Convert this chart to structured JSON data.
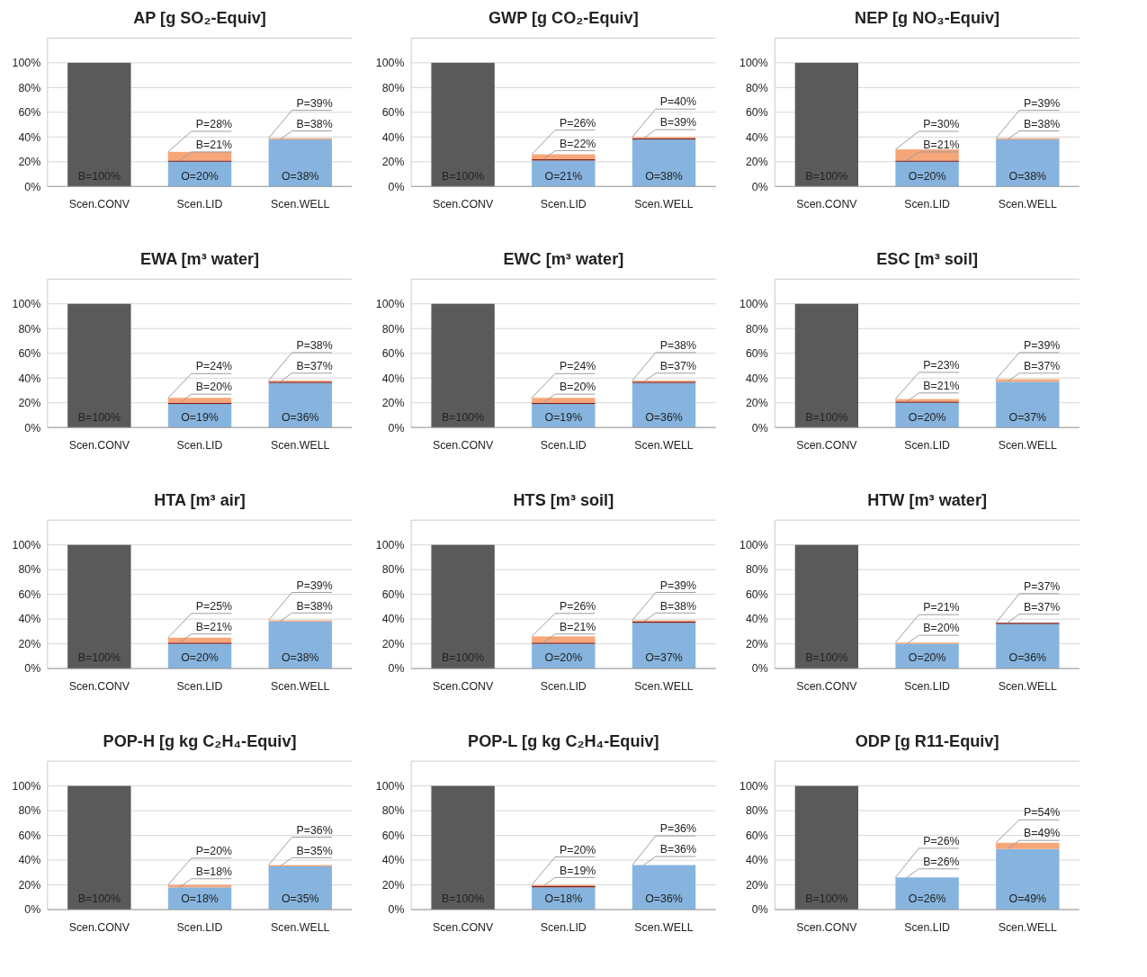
{
  "chart_data": [
    {
      "type": "bar",
      "stacked": true,
      "grid": "y",
      "title": "AP [g SO₂-Equiv]",
      "categories": [
        "Scen.CONV",
        "Scen.LID",
        "Scen.WELL"
      ],
      "ylim": [
        0,
        120
      ],
      "yticks": [
        {
          "value": 0,
          "label": "0%"
        },
        {
          "value": 20,
          "label": "20%"
        },
        {
          "value": 40,
          "label": "40%"
        },
        {
          "value": 60,
          "label": "60%"
        },
        {
          "value": 80,
          "label": "80%"
        },
        {
          "value": 100,
          "label": "100%"
        }
      ],
      "series": [
        {
          "colors": [
            "#5a5a5a",
            "#86b4de",
            "#86b4de"
          ],
          "values": [
            0,
            20,
            38
          ],
          "value_labels": [
            null,
            "O=20%",
            "O=38%"
          ]
        },
        {
          "colors": [
            "#5a5a5a",
            "#7b1c1c",
            "#7b1c1c"
          ],
          "values": [
            100,
            1,
            0
          ],
          "value_labels": [
            "B=100%",
            null,
            null
          ]
        },
        {
          "colors": [
            "#5a5a5a",
            "#f7a67a",
            "#f7a67a"
          ],
          "values": [
            0,
            7,
            1
          ]
        }
      ],
      "annotations": [
        {
          "text": "B=21%",
          "x": "Scen.LID",
          "y": 21
        },
        {
          "text": "P=28%",
          "x": "Scen.LID",
          "y": 28
        },
        {
          "text": "B=38%",
          "x": "Scen.WELL",
          "y": 38
        },
        {
          "text": "P=39%",
          "x": "Scen.WELL",
          "y": 39
        }
      ]
    },
    {
      "type": "bar",
      "stacked": true,
      "grid": "y",
      "title": "GWP [g CO₂-Equiv]",
      "categories": [
        "Scen.CONV",
        "Scen.LID",
        "Scen.WELL"
      ],
      "ylim": [
        0,
        120
      ],
      "yticks": [
        {
          "value": 0,
          "label": "0%"
        },
        {
          "value": 20,
          "label": "20%"
        },
        {
          "value": 40,
          "label": "40%"
        },
        {
          "value": 60,
          "label": "60%"
        },
        {
          "value": 80,
          "label": "80%"
        },
        {
          "value": 100,
          "label": "100%"
        }
      ],
      "series": [
        {
          "colors": [
            "#5a5a5a",
            "#86b4de",
            "#86b4de"
          ],
          "values": [
            0,
            21,
            38
          ],
          "value_labels": [
            null,
            "O=21%",
            "O=38%"
          ]
        },
        {
          "colors": [
            "#5a5a5a",
            "#7b1c1c",
            "#7b1c1c"
          ],
          "values": [
            100,
            1,
            1
          ],
          "value_labels": [
            "B=100%",
            null,
            null
          ]
        },
        {
          "colors": [
            "#5a5a5a",
            "#f7a67a",
            "#f7a67a"
          ],
          "values": [
            0,
            4,
            1
          ]
        }
      ],
      "annotations": [
        {
          "text": "B=22%",
          "x": "Scen.LID",
          "y": 22
        },
        {
          "text": "P=26%",
          "x": "Scen.LID",
          "y": 26
        },
        {
          "text": "B=39%",
          "x": "Scen.WELL",
          "y": 39
        },
        {
          "text": "P=40%",
          "x": "Scen.WELL",
          "y": 40
        }
      ]
    },
    {
      "type": "bar",
      "stacked": true,
      "grid": "y",
      "title": "NEP [g NO₃-Equiv]",
      "categories": [
        "Scen.CONV",
        "Scen.LID",
        "Scen.WELL"
      ],
      "ylim": [
        0,
        120
      ],
      "yticks": [
        {
          "value": 0,
          "label": "0%"
        },
        {
          "value": 20,
          "label": "20%"
        },
        {
          "value": 40,
          "label": "40%"
        },
        {
          "value": 60,
          "label": "60%"
        },
        {
          "value": 80,
          "label": "80%"
        },
        {
          "value": 100,
          "label": "100%"
        }
      ],
      "series": [
        {
          "colors": [
            "#5a5a5a",
            "#86b4de",
            "#86b4de"
          ],
          "values": [
            0,
            20,
            38
          ],
          "value_labels": [
            null,
            "O=20%",
            "O=38%"
          ]
        },
        {
          "colors": [
            "#5a5a5a",
            "#7b1c1c",
            "#7b1c1c"
          ],
          "values": [
            100,
            1,
            0
          ],
          "value_labels": [
            "B=100%",
            null,
            null
          ]
        },
        {
          "colors": [
            "#5a5a5a",
            "#f7a67a",
            "#f7a67a"
          ],
          "values": [
            0,
            9,
            1
          ]
        }
      ],
      "annotations": [
        {
          "text": "B=21%",
          "x": "Scen.LID",
          "y": 21
        },
        {
          "text": "P=30%",
          "x": "Scen.LID",
          "y": 30
        },
        {
          "text": "B=38%",
          "x": "Scen.WELL",
          "y": 38
        },
        {
          "text": "P=39%",
          "x": "Scen.WELL",
          "y": 39
        }
      ]
    },
    {
      "type": "bar",
      "stacked": true,
      "grid": "y",
      "title": "EWA [m³ water]",
      "categories": [
        "Scen.CONV",
        "Scen.LID",
        "Scen.WELL"
      ],
      "ylim": [
        0,
        120
      ],
      "yticks": [
        {
          "value": 0,
          "label": "0%"
        },
        {
          "value": 20,
          "label": "20%"
        },
        {
          "value": 40,
          "label": "40%"
        },
        {
          "value": 60,
          "label": "60%"
        },
        {
          "value": 80,
          "label": "80%"
        },
        {
          "value": 100,
          "label": "100%"
        }
      ],
      "series": [
        {
          "colors": [
            "#5a5a5a",
            "#86b4de",
            "#86b4de"
          ],
          "values": [
            0,
            19,
            36
          ],
          "value_labels": [
            null,
            "O=19%",
            "O=36%"
          ]
        },
        {
          "colors": [
            "#5a5a5a",
            "#7b1c1c",
            "#7b1c1c"
          ],
          "values": [
            100,
            1,
            1
          ],
          "value_labels": [
            "B=100%",
            null,
            null
          ]
        },
        {
          "colors": [
            "#5a5a5a",
            "#f7a67a",
            "#f7a67a"
          ],
          "values": [
            0,
            4,
            1
          ]
        }
      ],
      "annotations": [
        {
          "text": "B=20%",
          "x": "Scen.LID",
          "y": 20
        },
        {
          "text": "P=24%",
          "x": "Scen.LID",
          "y": 24
        },
        {
          "text": "B=37%",
          "x": "Scen.WELL",
          "y": 37
        },
        {
          "text": "P=38%",
          "x": "Scen.WELL",
          "y": 38
        }
      ]
    },
    {
      "type": "bar",
      "stacked": true,
      "grid": "y",
      "title": "EWC [m³ water]",
      "categories": [
        "Scen.CONV",
        "Scen.LID",
        "Scen.WELL"
      ],
      "ylim": [
        0,
        120
      ],
      "yticks": [
        {
          "value": 0,
          "label": "0%"
        },
        {
          "value": 20,
          "label": "20%"
        },
        {
          "value": 40,
          "label": "40%"
        },
        {
          "value": 60,
          "label": "60%"
        },
        {
          "value": 80,
          "label": "80%"
        },
        {
          "value": 100,
          "label": "100%"
        }
      ],
      "series": [
        {
          "colors": [
            "#5a5a5a",
            "#86b4de",
            "#86b4de"
          ],
          "values": [
            0,
            19,
            36
          ],
          "value_labels": [
            null,
            "O=19%",
            "O=36%"
          ]
        },
        {
          "colors": [
            "#5a5a5a",
            "#7b1c1c",
            "#7b1c1c"
          ],
          "values": [
            100,
            1,
            1
          ],
          "value_labels": [
            "B=100%",
            null,
            null
          ]
        },
        {
          "colors": [
            "#5a5a5a",
            "#f7a67a",
            "#f7a67a"
          ],
          "values": [
            0,
            4,
            1
          ]
        }
      ],
      "annotations": [
        {
          "text": "B=20%",
          "x": "Scen.LID",
          "y": 20
        },
        {
          "text": "P=24%",
          "x": "Scen.LID",
          "y": 24
        },
        {
          "text": "B=37%",
          "x": "Scen.WELL",
          "y": 37
        },
        {
          "text": "P=38%",
          "x": "Scen.WELL",
          "y": 38
        }
      ]
    },
    {
      "type": "bar",
      "stacked": true,
      "grid": "y",
      "title": "ESC [m³ soil]",
      "categories": [
        "Scen.CONV",
        "Scen.LID",
        "Scen.WELL"
      ],
      "ylim": [
        0,
        120
      ],
      "yticks": [
        {
          "value": 0,
          "label": "0%"
        },
        {
          "value": 20,
          "label": "20%"
        },
        {
          "value": 40,
          "label": "40%"
        },
        {
          "value": 60,
          "label": "60%"
        },
        {
          "value": 80,
          "label": "80%"
        },
        {
          "value": 100,
          "label": "100%"
        }
      ],
      "series": [
        {
          "colors": [
            "#5a5a5a",
            "#86b4de",
            "#86b4de"
          ],
          "values": [
            0,
            20,
            37
          ],
          "value_labels": [
            null,
            "O=20%",
            "O=37%"
          ]
        },
        {
          "colors": [
            "#5a5a5a",
            "#7b1c1c",
            "#7b1c1c"
          ],
          "values": [
            100,
            1,
            0
          ],
          "value_labels": [
            "B=100%",
            null,
            null
          ]
        },
        {
          "colors": [
            "#5a5a5a",
            "#f7a67a",
            "#f7a67a"
          ],
          "values": [
            0,
            2,
            2
          ]
        }
      ],
      "annotations": [
        {
          "text": "B=21%",
          "x": "Scen.LID",
          "y": 21
        },
        {
          "text": "P=23%",
          "x": "Scen.LID",
          "y": 23
        },
        {
          "text": "B=37%",
          "x": "Scen.WELL",
          "y": 37
        },
        {
          "text": "P=39%",
          "x": "Scen.WELL",
          "y": 39
        }
      ]
    },
    {
      "type": "bar",
      "stacked": true,
      "grid": "y",
      "title": "HTA [m³ air]",
      "categories": [
        "Scen.CONV",
        "Scen.LID",
        "Scen.WELL"
      ],
      "ylim": [
        0,
        120
      ],
      "yticks": [
        {
          "value": 0,
          "label": "0%"
        },
        {
          "value": 20,
          "label": "20%"
        },
        {
          "value": 40,
          "label": "40%"
        },
        {
          "value": 60,
          "label": "60%"
        },
        {
          "value": 80,
          "label": "80%"
        },
        {
          "value": 100,
          "label": "100%"
        }
      ],
      "series": [
        {
          "colors": [
            "#5a5a5a",
            "#86b4de",
            "#86b4de"
          ],
          "values": [
            0,
            20,
            38
          ],
          "value_labels": [
            null,
            "O=20%",
            "O=38%"
          ]
        },
        {
          "colors": [
            "#5a5a5a",
            "#7b1c1c",
            "#7b1c1c"
          ],
          "values": [
            100,
            1,
            0
          ],
          "value_labels": [
            "B=100%",
            null,
            null
          ]
        },
        {
          "colors": [
            "#5a5a5a",
            "#f7a67a",
            "#f7a67a"
          ],
          "values": [
            0,
            4,
            1
          ]
        }
      ],
      "annotations": [
        {
          "text": "B=21%",
          "x": "Scen.LID",
          "y": 21
        },
        {
          "text": "P=25%",
          "x": "Scen.LID",
          "y": 25
        },
        {
          "text": "B=38%",
          "x": "Scen.WELL",
          "y": 38
        },
        {
          "text": "P=39%",
          "x": "Scen.WELL",
          "y": 39
        }
      ]
    },
    {
      "type": "bar",
      "stacked": true,
      "grid": "y",
      "title": "HTS [m³ soil]",
      "categories": [
        "Scen.CONV",
        "Scen.LID",
        "Scen.WELL"
      ],
      "ylim": [
        0,
        120
      ],
      "yticks": [
        {
          "value": 0,
          "label": "0%"
        },
        {
          "value": 20,
          "label": "20%"
        },
        {
          "value": 40,
          "label": "40%"
        },
        {
          "value": 60,
          "label": "60%"
        },
        {
          "value": 80,
          "label": "80%"
        },
        {
          "value": 100,
          "label": "100%"
        }
      ],
      "series": [
        {
          "colors": [
            "#5a5a5a",
            "#86b4de",
            "#86b4de"
          ],
          "values": [
            0,
            20,
            37
          ],
          "value_labels": [
            null,
            "O=20%",
            "O=37%"
          ]
        },
        {
          "colors": [
            "#5a5a5a",
            "#7b1c1c",
            "#7b1c1c"
          ],
          "values": [
            100,
            1,
            1
          ],
          "value_labels": [
            "B=100%",
            null,
            null
          ]
        },
        {
          "colors": [
            "#5a5a5a",
            "#f7a67a",
            "#f7a67a"
          ],
          "values": [
            0,
            5,
            1
          ]
        }
      ],
      "annotations": [
        {
          "text": "B=21%",
          "x": "Scen.LID",
          "y": 21
        },
        {
          "text": "P=26%",
          "x": "Scen.LID",
          "y": 26
        },
        {
          "text": "B=38%",
          "x": "Scen.WELL",
          "y": 38
        },
        {
          "text": "P=39%",
          "x": "Scen.WELL",
          "y": 39
        }
      ]
    },
    {
      "type": "bar",
      "stacked": true,
      "grid": "y",
      "title": "HTW [m³ water]",
      "categories": [
        "Scen.CONV",
        "Scen.LID",
        "Scen.WELL"
      ],
      "ylim": [
        0,
        120
      ],
      "yticks": [
        {
          "value": 0,
          "label": "0%"
        },
        {
          "value": 20,
          "label": "20%"
        },
        {
          "value": 40,
          "label": "40%"
        },
        {
          "value": 60,
          "label": "60%"
        },
        {
          "value": 80,
          "label": "80%"
        },
        {
          "value": 100,
          "label": "100%"
        }
      ],
      "series": [
        {
          "colors": [
            "#5a5a5a",
            "#86b4de",
            "#86b4de"
          ],
          "values": [
            0,
            20,
            36
          ],
          "value_labels": [
            null,
            "O=20%",
            "O=36%"
          ]
        },
        {
          "colors": [
            "#5a5a5a",
            "#7b1c1c",
            "#7b1c1c"
          ],
          "values": [
            100,
            0,
            1
          ],
          "value_labels": [
            "B=100%",
            null,
            null
          ]
        },
        {
          "colors": [
            "#5a5a5a",
            "#f7a67a",
            "#f7a67a"
          ],
          "values": [
            0,
            1,
            0
          ]
        }
      ],
      "annotations": [
        {
          "text": "B=20%",
          "x": "Scen.LID",
          "y": 20
        },
        {
          "text": "P=21%",
          "x": "Scen.LID",
          "y": 21
        },
        {
          "text": "B=37%",
          "x": "Scen.WELL",
          "y": 37
        },
        {
          "text": "P=37%",
          "x": "Scen.WELL",
          "y": 37
        }
      ]
    },
    {
      "type": "bar",
      "stacked": true,
      "grid": "y",
      "title": "POP-H [g kg C₂H₄-Equiv]",
      "categories": [
        "Scen.CONV",
        "Scen.LID",
        "Scen.WELL"
      ],
      "ylim": [
        0,
        120
      ],
      "yticks": [
        {
          "value": 0,
          "label": "0%"
        },
        {
          "value": 20,
          "label": "20%"
        },
        {
          "value": 40,
          "label": "40%"
        },
        {
          "value": 60,
          "label": "60%"
        },
        {
          "value": 80,
          "label": "80%"
        },
        {
          "value": 100,
          "label": "100%"
        }
      ],
      "series": [
        {
          "colors": [
            "#5a5a5a",
            "#86b4de",
            "#86b4de"
          ],
          "values": [
            0,
            18,
            35
          ],
          "value_labels": [
            null,
            "O=18%",
            "O=35%"
          ]
        },
        {
          "colors": [
            "#5a5a5a",
            "#7b1c1c",
            "#7b1c1c"
          ],
          "values": [
            100,
            0,
            0
          ],
          "value_labels": [
            "B=100%",
            null,
            null
          ]
        },
        {
          "colors": [
            "#5a5a5a",
            "#f7a67a",
            "#f7a67a"
          ],
          "values": [
            0,
            2,
            1
          ]
        }
      ],
      "annotations": [
        {
          "text": "B=18%",
          "x": "Scen.LID",
          "y": 18
        },
        {
          "text": "P=20%",
          "x": "Scen.LID",
          "y": 20
        },
        {
          "text": "B=35%",
          "x": "Scen.WELL",
          "y": 35
        },
        {
          "text": "P=36%",
          "x": "Scen.WELL",
          "y": 36
        }
      ]
    },
    {
      "type": "bar",
      "stacked": true,
      "grid": "y",
      "title": "POP-L [g kg C₂H₄-Equiv]",
      "categories": [
        "Scen.CONV",
        "Scen.LID",
        "Scen.WELL"
      ],
      "ylim": [
        0,
        120
      ],
      "yticks": [
        {
          "value": 0,
          "label": "0%"
        },
        {
          "value": 20,
          "label": "20%"
        },
        {
          "value": 40,
          "label": "40%"
        },
        {
          "value": 60,
          "label": "60%"
        },
        {
          "value": 80,
          "label": "80%"
        },
        {
          "value": 100,
          "label": "100%"
        }
      ],
      "series": [
        {
          "colors": [
            "#5a5a5a",
            "#86b4de",
            "#86b4de"
          ],
          "values": [
            0,
            18,
            36
          ],
          "value_labels": [
            null,
            "O=18%",
            "O=36%"
          ]
        },
        {
          "colors": [
            "#5a5a5a",
            "#7b1c1c",
            "#7b1c1c"
          ],
          "values": [
            100,
            1,
            0
          ],
          "value_labels": [
            "B=100%",
            null,
            null
          ]
        },
        {
          "colors": [
            "#5a5a5a",
            "#f7a67a",
            "#f7a67a"
          ],
          "values": [
            0,
            1,
            0
          ]
        }
      ],
      "annotations": [
        {
          "text": "B=19%",
          "x": "Scen.LID",
          "y": 19
        },
        {
          "text": "P=20%",
          "x": "Scen.LID",
          "y": 20
        },
        {
          "text": "B=36%",
          "x": "Scen.WELL",
          "y": 36
        },
        {
          "text": "P=36%",
          "x": "Scen.WELL",
          "y": 36
        }
      ]
    },
    {
      "type": "bar",
      "stacked": true,
      "grid": "y",
      "title": "ODP [g R11-Equiv]",
      "categories": [
        "Scen.CONV",
        "Scen.LID",
        "Scen.WELL"
      ],
      "ylim": [
        0,
        120
      ],
      "yticks": [
        {
          "value": 0,
          "label": "0%"
        },
        {
          "value": 20,
          "label": "20%"
        },
        {
          "value": 40,
          "label": "40%"
        },
        {
          "value": 60,
          "label": "60%"
        },
        {
          "value": 80,
          "label": "80%"
        },
        {
          "value": 100,
          "label": "100%"
        }
      ],
      "series": [
        {
          "colors": [
            "#5a5a5a",
            "#86b4de",
            "#86b4de"
          ],
          "values": [
            0,
            26,
            49
          ],
          "value_labels": [
            null,
            "O=26%",
            "O=49%"
          ]
        },
        {
          "colors": [
            "#5a5a5a",
            "#7b1c1c",
            "#7b1c1c"
          ],
          "values": [
            100,
            0,
            0
          ],
          "value_labels": [
            "B=100%",
            null,
            null
          ]
        },
        {
          "colors": [
            "#5a5a5a",
            "#f7a67a",
            "#f7a67a"
          ],
          "values": [
            0,
            0,
            5
          ]
        }
      ],
      "annotations": [
        {
          "text": "B=26%",
          "x": "Scen.LID",
          "y": 26
        },
        {
          "text": "P=26%",
          "x": "Scen.LID",
          "y": 26
        },
        {
          "text": "B=49%",
          "x": "Scen.WELL",
          "y": 49
        },
        {
          "text": "P=54%",
          "x": "Scen.WELL",
          "y": 54
        }
      ]
    }
  ]
}
